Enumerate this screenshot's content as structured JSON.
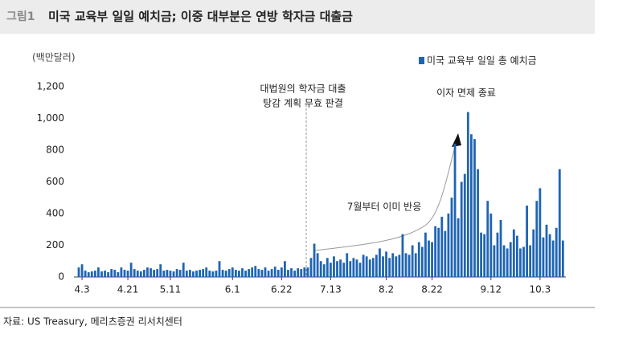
{
  "chart_data": {
    "type": "bar",
    "title_prefix": "그림1",
    "title": "미국 교육부 일일 예치금; 이중 대부분은 연방 학자금 대출금",
    "y_unit": "(백만달러)",
    "source": "자료: US Treasury, 메리츠증권 리서치센터",
    "annotations": [
      "대법원의 학자금 대출",
      "탕감 계획 무효 판결",
      "이자 면제 종료",
      "7월부터 이미 반응"
    ],
    "categories": [
      null,
      "4.3",
      null,
      null,
      null,
      null,
      null,
      null,
      null,
      null,
      null,
      null,
      null,
      null,
      null,
      "4.21",
      null,
      null,
      null,
      null,
      null,
      null,
      null,
      null,
      null,
      null,
      null,
      null,
      "5.11",
      null,
      null,
      null,
      null,
      null,
      null,
      null,
      null,
      null,
      null,
      null,
      null,
      null,
      null,
      null,
      null,
      null,
      null,
      "6.1",
      null,
      null,
      null,
      null,
      null,
      null,
      null,
      null,
      null,
      null,
      null,
      null,
      null,
      null,
      "6.22",
      null,
      null,
      null,
      null,
      null,
      null,
      null,
      null,
      null,
      null,
      null,
      null,
      null,
      null,
      "7.13",
      null,
      null,
      null,
      null,
      null,
      null,
      null,
      null,
      null,
      null,
      null,
      null,
      null,
      null,
      null,
      null,
      "8.2",
      null,
      null,
      null,
      null,
      null,
      null,
      null,
      null,
      null,
      null,
      null,
      null,
      null,
      "8.22",
      null,
      null,
      null,
      null,
      null,
      null,
      null,
      null,
      null,
      null,
      null,
      null,
      null,
      null,
      null,
      null,
      null,
      "9.12",
      null,
      null,
      null,
      null,
      null,
      null,
      null,
      null,
      null,
      null,
      null,
      null,
      null,
      null,
      "10.3",
      null,
      null,
      null,
      null,
      null,
      null,
      null
    ],
    "series": [
      {
        "name": "미국 교육부 일일 총 예치금",
        "color": "#1f64b4",
        "values": [
          60,
          80,
          40,
          30,
          35,
          40,
          60,
          35,
          40,
          30,
          50,
          45,
          30,
          60,
          45,
          40,
          90,
          50,
          40,
          35,
          45,
          60,
          55,
          45,
          50,
          80,
          40,
          45,
          40,
          35,
          50,
          45,
          90,
          40,
          45,
          35,
          40,
          45,
          50,
          60,
          40,
          35,
          40,
          100,
          45,
          40,
          50,
          60,
          45,
          40,
          55,
          40,
          50,
          60,
          70,
          50,
          45,
          60,
          40,
          50,
          65,
          45,
          60,
          100,
          45,
          55,
          40,
          55,
          50,
          60,
          60,
          120,
          210,
          150,
          100,
          80,
          120,
          90,
          130,
          100,
          110,
          90,
          150,
          100,
          120,
          110,
          90,
          140,
          130,
          110,
          120,
          140,
          180,
          130,
          160,
          120,
          150,
          130,
          140,
          270,
          150,
          140,
          200,
          150,
          220,
          190,
          280,
          230,
          220,
          320,
          310,
          380,
          290,
          400,
          500,
          840,
          370,
          600,
          650,
          1040,
          900,
          870,
          680,
          280,
          270,
          480,
          400,
          200,
          280,
          360,
          200,
          180,
          220,
          300,
          260,
          180,
          190,
          450,
          200,
          300,
          480,
          560,
          250,
          330,
          270,
          230,
          310,
          680,
          230
        ]
      }
    ],
    "ylim": [
      0,
      1200
    ],
    "yticks": [
      0,
      200,
      400,
      600,
      800,
      {
        "value": 1000,
        "label": "1,000"
      },
      {
        "value": 1200,
        "label": "1,200"
      }
    ]
  }
}
